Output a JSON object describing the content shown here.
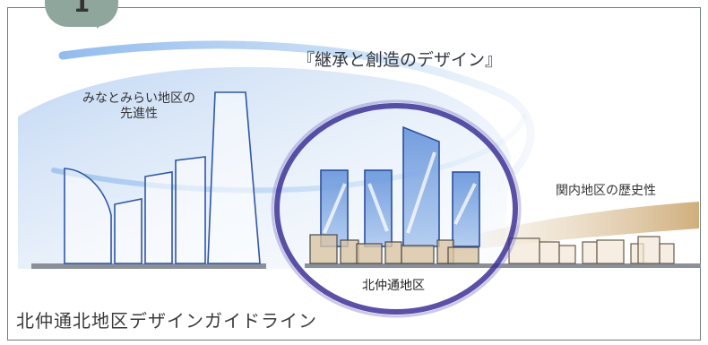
{
  "badge": {
    "number": "1"
  },
  "headline": "『継承と創造のデザイン』",
  "areas": {
    "minatomirai_line1": "みなとみらい地区の",
    "minatomirai_line2": "先進性",
    "kannai": "関内地区の歴史性",
    "kitanaka": "北仲通地区"
  },
  "page_title": "北仲通北地区デザインガイドライン",
  "colors": {
    "frame": "#6f7f78",
    "badge": "#8fa69d",
    "blue_band": "#5d93d6",
    "circle": "#3d3196",
    "buildings": "#2f56a8",
    "history_band": "#c7a87a"
  }
}
